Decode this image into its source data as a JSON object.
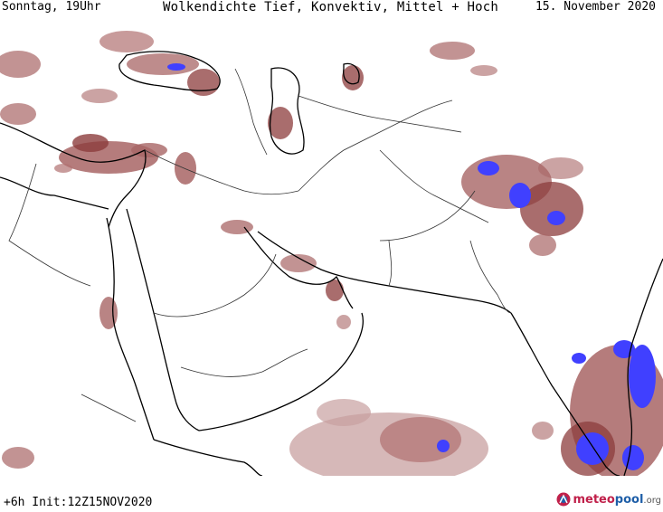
{
  "header": {
    "left": "Sonntag, 19Uhr",
    "title": "Wolkendichte  Tief, Konvektiv, Mittel + Hoch",
    "date": "15. November 2020"
  },
  "footer": {
    "run_info": "+6h  Init:12Z15NOV2020"
  },
  "logo": {
    "brand_a": "meteo",
    "brand_b": "pool",
    "suffix": ".org"
  },
  "colors": {
    "cloud_low": "#c8a0a0",
    "cloud_mid": "#a86565",
    "cloud_dense": "#8c3c3c",
    "convective": "#4040ff",
    "coast": "#000000",
    "border": "#333333",
    "logo_red": "#c0204a",
    "logo_blue": "#1f5fa8"
  }
}
